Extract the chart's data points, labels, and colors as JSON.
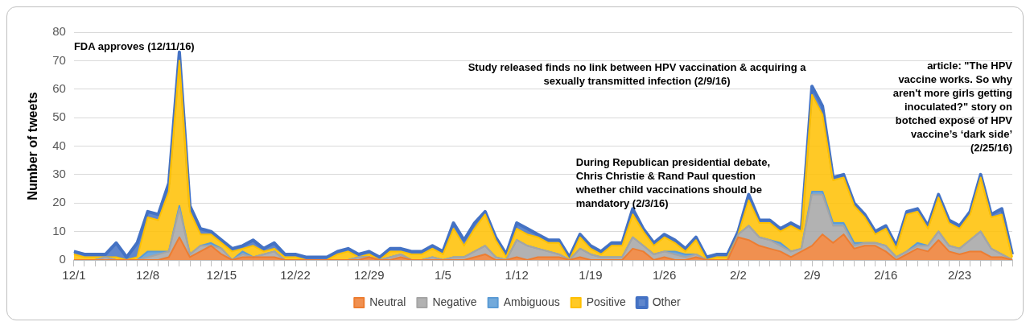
{
  "chart_data": {
    "type": "area",
    "stacked": true,
    "ylabel": "Number of tweets",
    "categories": [
      "12/1",
      null,
      null,
      null,
      null,
      null,
      null,
      "12/8",
      null,
      null,
      null,
      null,
      null,
      null,
      "12/15",
      null,
      null,
      null,
      null,
      null,
      null,
      "12/22",
      null,
      null,
      null,
      null,
      null,
      null,
      "12/29",
      null,
      null,
      null,
      null,
      null,
      null,
      "1/5",
      null,
      null,
      null,
      null,
      null,
      null,
      "1/12",
      null,
      null,
      null,
      null,
      null,
      null,
      "1/19",
      null,
      null,
      null,
      null,
      null,
      null,
      "1/26",
      null,
      null,
      null,
      null,
      null,
      null,
      "2/2",
      null,
      null,
      null,
      null,
      null,
      null,
      "2/9",
      null,
      null,
      null,
      null,
      null,
      null,
      "2/16",
      null,
      null,
      null,
      null,
      null,
      null,
      "2/23",
      null,
      null,
      null,
      null,
      null
    ],
    "series": [
      {
        "name": "Neutral",
        "color": "#ed7d31",
        "values": [
          0,
          0,
          0,
          0,
          0,
          0,
          0,
          0,
          0,
          1,
          8,
          1,
          3,
          5,
          2,
          0,
          1,
          1,
          1,
          1,
          0,
          0,
          0,
          0,
          0,
          0,
          0,
          0,
          1,
          0,
          0,
          1,
          0,
          0,
          0,
          0,
          0,
          0,
          1,
          2,
          0,
          0,
          1,
          0,
          1,
          1,
          1,
          0,
          1,
          0,
          0,
          0,
          0,
          4,
          3,
          0,
          1,
          0,
          0,
          1,
          0,
          0,
          0,
          8,
          7,
          5,
          4,
          3,
          1,
          3,
          5,
          9,
          6,
          9,
          4,
          5,
          5,
          3,
          0,
          2,
          4,
          3,
          7,
          3,
          2,
          3,
          3,
          1,
          1,
          0
        ]
      },
      {
        "name": "Negative",
        "color": "#a5a5a5",
        "values": [
          0,
          0,
          0,
          1,
          0,
          0,
          0,
          1,
          2,
          2,
          10,
          1,
          2,
          0,
          2,
          0,
          1,
          0,
          1,
          2,
          0,
          0,
          0,
          0,
          0,
          0,
          0,
          1,
          0,
          0,
          1,
          1,
          0,
          0,
          1,
          0,
          1,
          1,
          2,
          3,
          1,
          0,
          6,
          5,
          3,
          2,
          1,
          0,
          3,
          2,
          1,
          1,
          1,
          4,
          2,
          2,
          2,
          2,
          1,
          1,
          0,
          0,
          0,
          1,
          5,
          3,
          3,
          2,
          2,
          1,
          18,
          14,
          6,
          3,
          1,
          1,
          1,
          2,
          1,
          1,
          1,
          2,
          3,
          2,
          2,
          4,
          7,
          3,
          1,
          0
        ]
      },
      {
        "name": "Ambiguous",
        "color": "#5b9bd5",
        "values": [
          0,
          0,
          0,
          0,
          0,
          0,
          0,
          2,
          1,
          0,
          1,
          0,
          0,
          1,
          0,
          0,
          1,
          0,
          0,
          0,
          0,
          0,
          0,
          0,
          0,
          0,
          0,
          0,
          0,
          0,
          0,
          0,
          0,
          0,
          0,
          0,
          0,
          0,
          0,
          0,
          0,
          0,
          0,
          0,
          0,
          0,
          0,
          0,
          0,
          0,
          0,
          0,
          0,
          0,
          0,
          0,
          0,
          1,
          1,
          0,
          0,
          0,
          0,
          0,
          0,
          0,
          0,
          1,
          0,
          0,
          1,
          1,
          1,
          1,
          1,
          0,
          0,
          0,
          0,
          0,
          1,
          0,
          0,
          0,
          0,
          0,
          0,
          0,
          0,
          0
        ]
      },
      {
        "name": "Positive",
        "color": "#ffc000",
        "values": [
          2,
          1,
          1,
          0,
          1,
          0,
          1,
          12,
          11,
          21,
          51,
          15,
          4,
          3,
          2,
          3,
          1,
          4,
          1,
          1,
          1,
          1,
          0,
          0,
          0,
          2,
          3,
          0,
          1,
          0,
          2,
          1,
          2,
          2,
          3,
          2,
          10,
          4,
          8,
          11,
          6,
          1,
          4,
          4,
          4,
          3,
          4,
          0,
          4,
          2,
          1,
          4,
          4,
          8,
          5,
          3,
          5,
          3,
          1,
          5,
          0,
          1,
          1,
          0,
          9,
          5,
          6,
          4,
          9,
          6,
          34,
          27,
          15,
          16,
          13,
          9,
          3,
          6,
          3,
          13,
          11,
          6,
          12,
          8,
          7,
          9,
          19,
          11,
          14,
          1
        ]
      },
      {
        "name": "Other",
        "color": "#4472c4",
        "values": [
          1,
          1,
          1,
          1,
          5,
          1,
          5,
          2,
          2,
          3,
          3,
          2,
          2,
          1,
          1,
          1,
          1,
          2,
          1,
          2,
          1,
          1,
          1,
          1,
          1,
          1,
          1,
          1,
          1,
          1,
          1,
          1,
          1,
          1,
          1,
          1,
          2,
          2,
          2,
          1,
          1,
          1,
          2,
          2,
          1,
          1,
          1,
          1,
          1,
          1,
          1,
          1,
          1,
          2,
          1,
          1,
          1,
          1,
          1,
          1,
          1,
          1,
          1,
          1,
          2,
          1,
          1,
          1,
          1,
          1,
          3,
          3,
          1,
          1,
          1,
          1,
          1,
          1,
          1,
          1,
          1,
          1,
          1,
          1,
          1,
          1,
          1,
          1,
          2,
          1
        ]
      }
    ],
    "ylim": [
      0,
      80
    ],
    "yticks": [
      0,
      10,
      20,
      30,
      40,
      50,
      60,
      70,
      80
    ],
    "grid": "y",
    "legend": "bottom",
    "annotations": [
      "FDA approves (12/11/16)",
      "Study released finds no link between HPV vaccination & acquiring a sexually transmitted infection (2/9/16)",
      "During Republican presidential debate, Chris Christie & Rand Paul question whether child vaccinations should be mandatory (2/3/16)",
      "article: \"The HPV vaccine works. So why aren't more girls getting inoculated?\" story on botched exposé of HPV vaccine’s ‘dark side’ (2/25/16)"
    ]
  }
}
